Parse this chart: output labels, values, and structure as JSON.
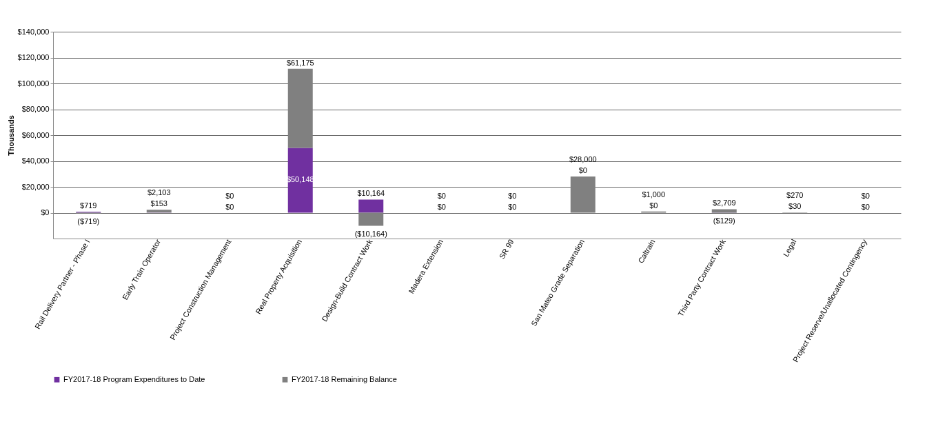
{
  "chart_data": {
    "type": "bar",
    "stacked": true,
    "ylabel": "Thousands",
    "categories": [
      "Rail Delivery Partner - Phase I",
      "Early Train Operator",
      "Project Construction Management",
      "Real Property Acquisition",
      "Design-Build Contract Work",
      "Madera Extension",
      "SR 99",
      "San Mateo Grade Separation",
      "Caltrain",
      "Third Party Contract Work",
      "Legal",
      "Project Reserve/Unallocated Contingency"
    ],
    "series": [
      {
        "name": "FY2017-18 Program Expenditures to Date",
        "color": "#7030a0",
        "values": [
          719,
          153,
          0,
          50148,
          10164,
          0,
          0,
          0,
          0,
          -129,
          30,
          0
        ],
        "value_labels": [
          "$719",
          "$153",
          "$0",
          "$50,148",
          "$10,164",
          "$0",
          "$0",
          "$0",
          "$0",
          "($129)",
          "$30",
          "$0"
        ]
      },
      {
        "name": "FY2017-18 Remaining Balance",
        "color": "#808080",
        "values": [
          -719,
          2103,
          0,
          61175,
          -10164,
          0,
          0,
          28000,
          1000,
          2709,
          270,
          0
        ],
        "value_labels": [
          "($719)",
          "$2,103",
          "$0",
          "$61,175",
          "($10,164)",
          "$0",
          "$0",
          "$28,000",
          "$1,000",
          "$2,709",
          "$270",
          "$0"
        ]
      }
    ],
    "ylim": [
      -20000,
      140000
    ],
    "yticks": [
      {
        "value": 0,
        "label": "$0"
      },
      {
        "value": 20000,
        "label": "$20,000"
      },
      {
        "value": 40000,
        "label": "$40,000"
      },
      {
        "value": 60000,
        "label": "$60,000"
      },
      {
        "value": 80000,
        "label": "$80,000"
      },
      {
        "value": 100000,
        "label": "$100,000"
      },
      {
        "value": 120000,
        "label": "$120,000"
      },
      {
        "value": 140000,
        "label": "$140,000"
      }
    ],
    "grid": "y",
    "legend": "bottom"
  }
}
